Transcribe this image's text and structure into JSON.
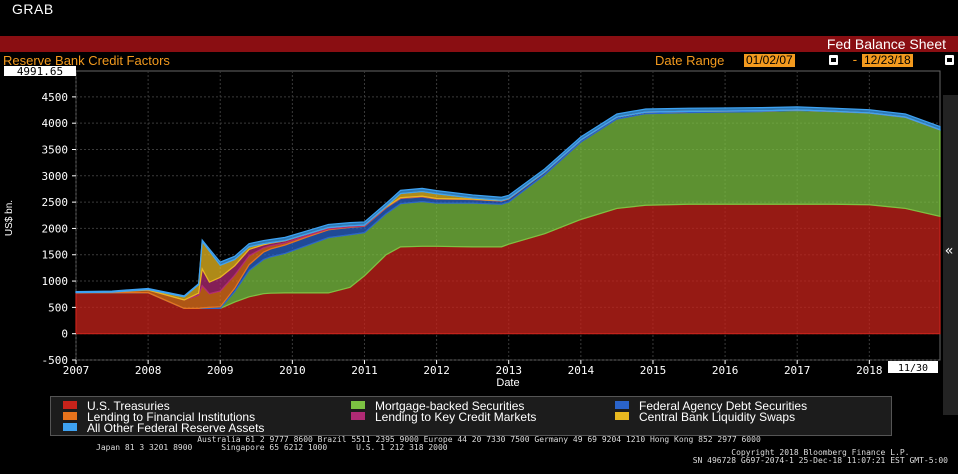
{
  "header": {
    "top_label": "GRAB",
    "title": "Fed Balance Sheet",
    "subtitle": "Reserve Bank Credit Factors",
    "date_range_label": "Date Range",
    "start_date": "01/02/07",
    "end_date": "12/23/18",
    "dash": "-"
  },
  "chart_data": {
    "type": "area",
    "stacked": true,
    "ylabel": "US$ bn.",
    "xlabel": "Date",
    "ylim": [
      -500,
      4991.65
    ],
    "y_max_label": "4991.65",
    "y_ticks": [
      -500,
      0,
      500,
      1000,
      1500,
      2000,
      2500,
      3000,
      3500,
      4000,
      4500
    ],
    "x_ticks": [
      2007,
      2008,
      2009,
      2010,
      2011,
      2012,
      2013,
      2014,
      2015,
      2016,
      2017,
      2018
    ],
    "x_end_label": "11/30",
    "xlim": [
      2007.0,
      2018.98
    ],
    "grid": true,
    "legend_position": "bottom",
    "x": [
      2007.0,
      2007.5,
      2008.0,
      2008.5,
      2008.7,
      2008.75,
      2008.85,
      2009.0,
      2009.2,
      2009.4,
      2009.6,
      2009.7,
      2009.9,
      2010.2,
      2010.5,
      2010.8,
      2011.0,
      2011.3,
      2011.5,
      2011.8,
      2012.0,
      2012.5,
      2012.9,
      2013.0,
      2013.5,
      2014.0,
      2014.5,
      2014.9,
      2015.5,
      2016.0,
      2016.5,
      2017.0,
      2017.5,
      2018.0,
      2018.5,
      2018.98
    ],
    "series": [
      {
        "name": "U.S. Treasuries",
        "color": "#c8231b",
        "values": [
          780,
          780,
          780,
          480,
          480,
          480,
          480,
          480,
          600,
          700,
          760,
          770,
          775,
          775,
          775,
          880,
          1100,
          1500,
          1650,
          1660,
          1660,
          1650,
          1650,
          1700,
          1900,
          2170,
          2380,
          2440,
          2460,
          2460,
          2460,
          2460,
          2460,
          2450,
          2380,
          2230
        ]
      },
      {
        "name": "Mortgage-backed Securities",
        "color": "#7cc242",
        "values": [
          0,
          0,
          0,
          0,
          0,
          0,
          0,
          0,
          200,
          500,
          650,
          690,
          750,
          900,
          1050,
          1000,
          820,
          780,
          820,
          850,
          820,
          830,
          810,
          800,
          1120,
          1470,
          1700,
          1740,
          1740,
          1750,
          1760,
          1780,
          1760,
          1740,
          1730,
          1640
        ]
      },
      {
        "name": "Federal Agency Debt Securities",
        "color": "#2a63c9",
        "values": [
          0,
          0,
          0,
          0,
          0,
          10,
          20,
          30,
          60,
          110,
          140,
          150,
          160,
          160,
          150,
          140,
          120,
          110,
          100,
          90,
          80,
          70,
          60,
          60,
          50,
          40,
          35,
          30,
          25,
          20,
          15,
          10,
          5,
          5,
          5,
          5
        ]
      },
      {
        "name": "Lending to Financial Institutions",
        "color": "#e8731c",
        "values": [
          0,
          10,
          50,
          160,
          250,
          420,
          260,
          300,
          250,
          170,
          80,
          60,
          40,
          25,
          15,
          10,
          8,
          6,
          5,
          5,
          4,
          3,
          2,
          2,
          1,
          0,
          0,
          0,
          0,
          0,
          0,
          0,
          0,
          0,
          0,
          0
        ]
      },
      {
        "name": "Lending to Key Credit Markets",
        "color": "#b02a74",
        "values": [
          0,
          0,
          0,
          0,
          40,
          320,
          220,
          260,
          180,
          120,
          60,
          50,
          40,
          30,
          25,
          20,
          15,
          10,
          8,
          6,
          5,
          4,
          3,
          2,
          1,
          0,
          0,
          0,
          0,
          0,
          0,
          0,
          0,
          0,
          0,
          0
        ]
      },
      {
        "name": "Central Bank Liquidity Swaps",
        "color": "#e8b820",
        "values": [
          0,
          0,
          10,
          60,
          160,
          520,
          590,
          230,
          120,
          50,
          20,
          10,
          5,
          2,
          1,
          0,
          0,
          10,
          80,
          90,
          90,
          20,
          8,
          5,
          1,
          0,
          0,
          0,
          0,
          0,
          0,
          0,
          0,
          0,
          0,
          0
        ]
      },
      {
        "name": "All Other Federal Reserve Assets",
        "color": "#3ea2f2",
        "values": [
          20,
          20,
          20,
          20,
          20,
          30,
          40,
          60,
          60,
          60,
          60,
          60,
          60,
          60,
          60,
          60,
          60,
          60,
          60,
          60,
          60,
          60,
          60,
          60,
          60,
          60,
          60,
          60,
          60,
          60,
          60,
          60,
          60,
          60,
          60,
          60
        ]
      }
    ]
  },
  "legend": [
    "U.S. Treasuries",
    "Mortgage-backed Securities",
    "Federal Agency Debt Securities",
    "Lending to Financial Institutions",
    "Lending to Key Credit Markets",
    "Central Bank Liquidity Swaps",
    "All Other Federal Reserve Assets"
  ],
  "side_tab": "«",
  "footer": {
    "line1": "Australia 61 2 9777 8600 Brazil 5511 2395 9000 Europe 44 20 7330 7500 Germany 49 69 9204 1210 Hong Kong 852 2977 6000",
    "line2": "Japan 81 3 3201 8900      Singapore 65 6212 1000      U.S. 1 212 318 2000",
    "line3a": "Copyright 2018 Bloomberg Finance L.P.",
    "line3b": "SN 496728 G697-2074-1 25-Dec-18 11:07:21 EST  GMT-5:00"
  }
}
